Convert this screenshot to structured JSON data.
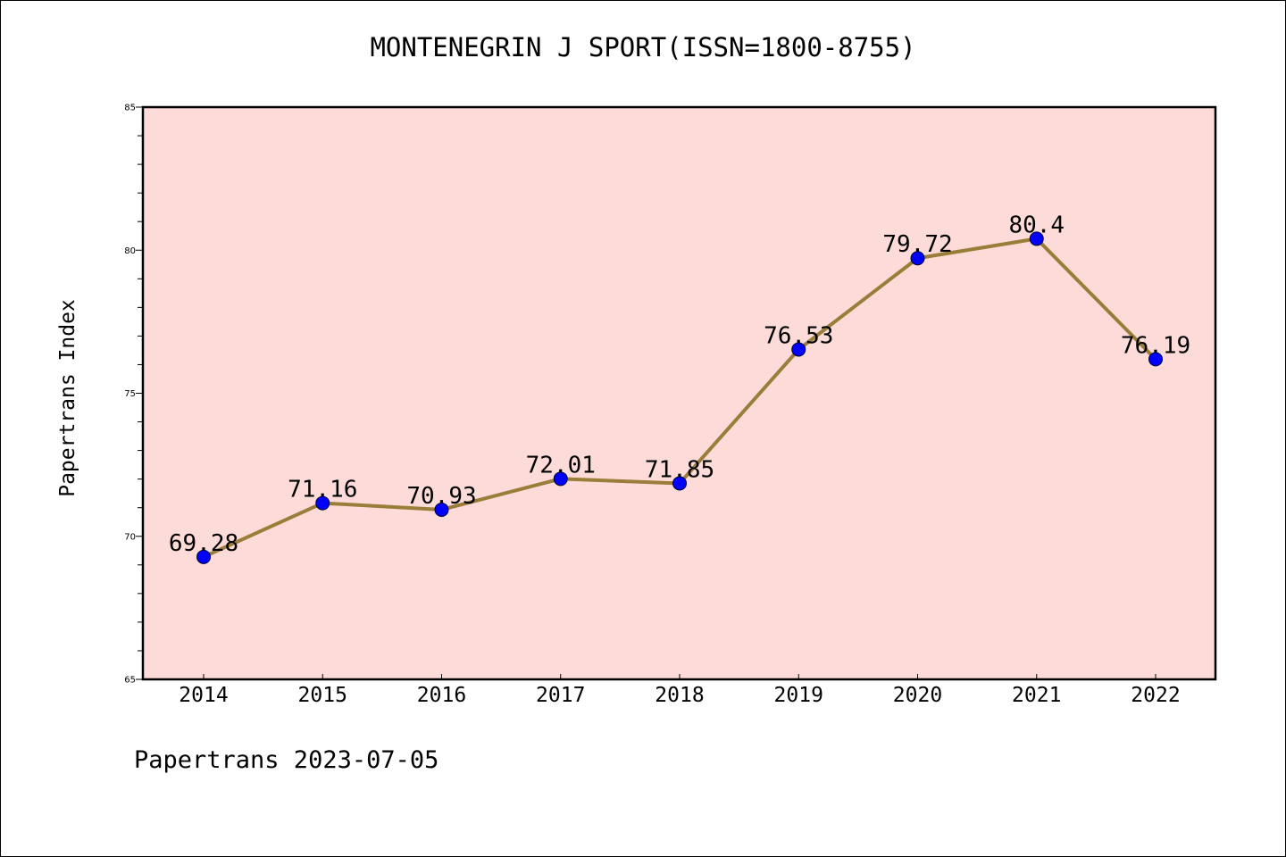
{
  "chart_data": {
    "type": "line",
    "title": "MONTENEGRIN J SPORT(ISSN=1800-8755)",
    "ylabel": "Papertrans Index",
    "xlabel": "",
    "footer": "Papertrans 2023-07-05",
    "categories": [
      "2014",
      "2015",
      "2016",
      "2017",
      "2018",
      "2019",
      "2020",
      "2021",
      "2022"
    ],
    "values": [
      69.28,
      71.16,
      70.93,
      72.01,
      71.85,
      76.53,
      79.72,
      80.4,
      76.19
    ],
    "value_labels": [
      "69.28",
      "71.16",
      "70.93",
      "72.01",
      "71.85",
      "76.53",
      "79.72",
      "80.4",
      "76.19"
    ],
    "ylim": [
      65,
      85
    ],
    "yticks": [
      65,
      70,
      75,
      80,
      85
    ],
    "grid": false,
    "colors": {
      "plot_background": "#fddbd8",
      "line": "#9b7d3a",
      "marker": "#0000ff"
    }
  }
}
